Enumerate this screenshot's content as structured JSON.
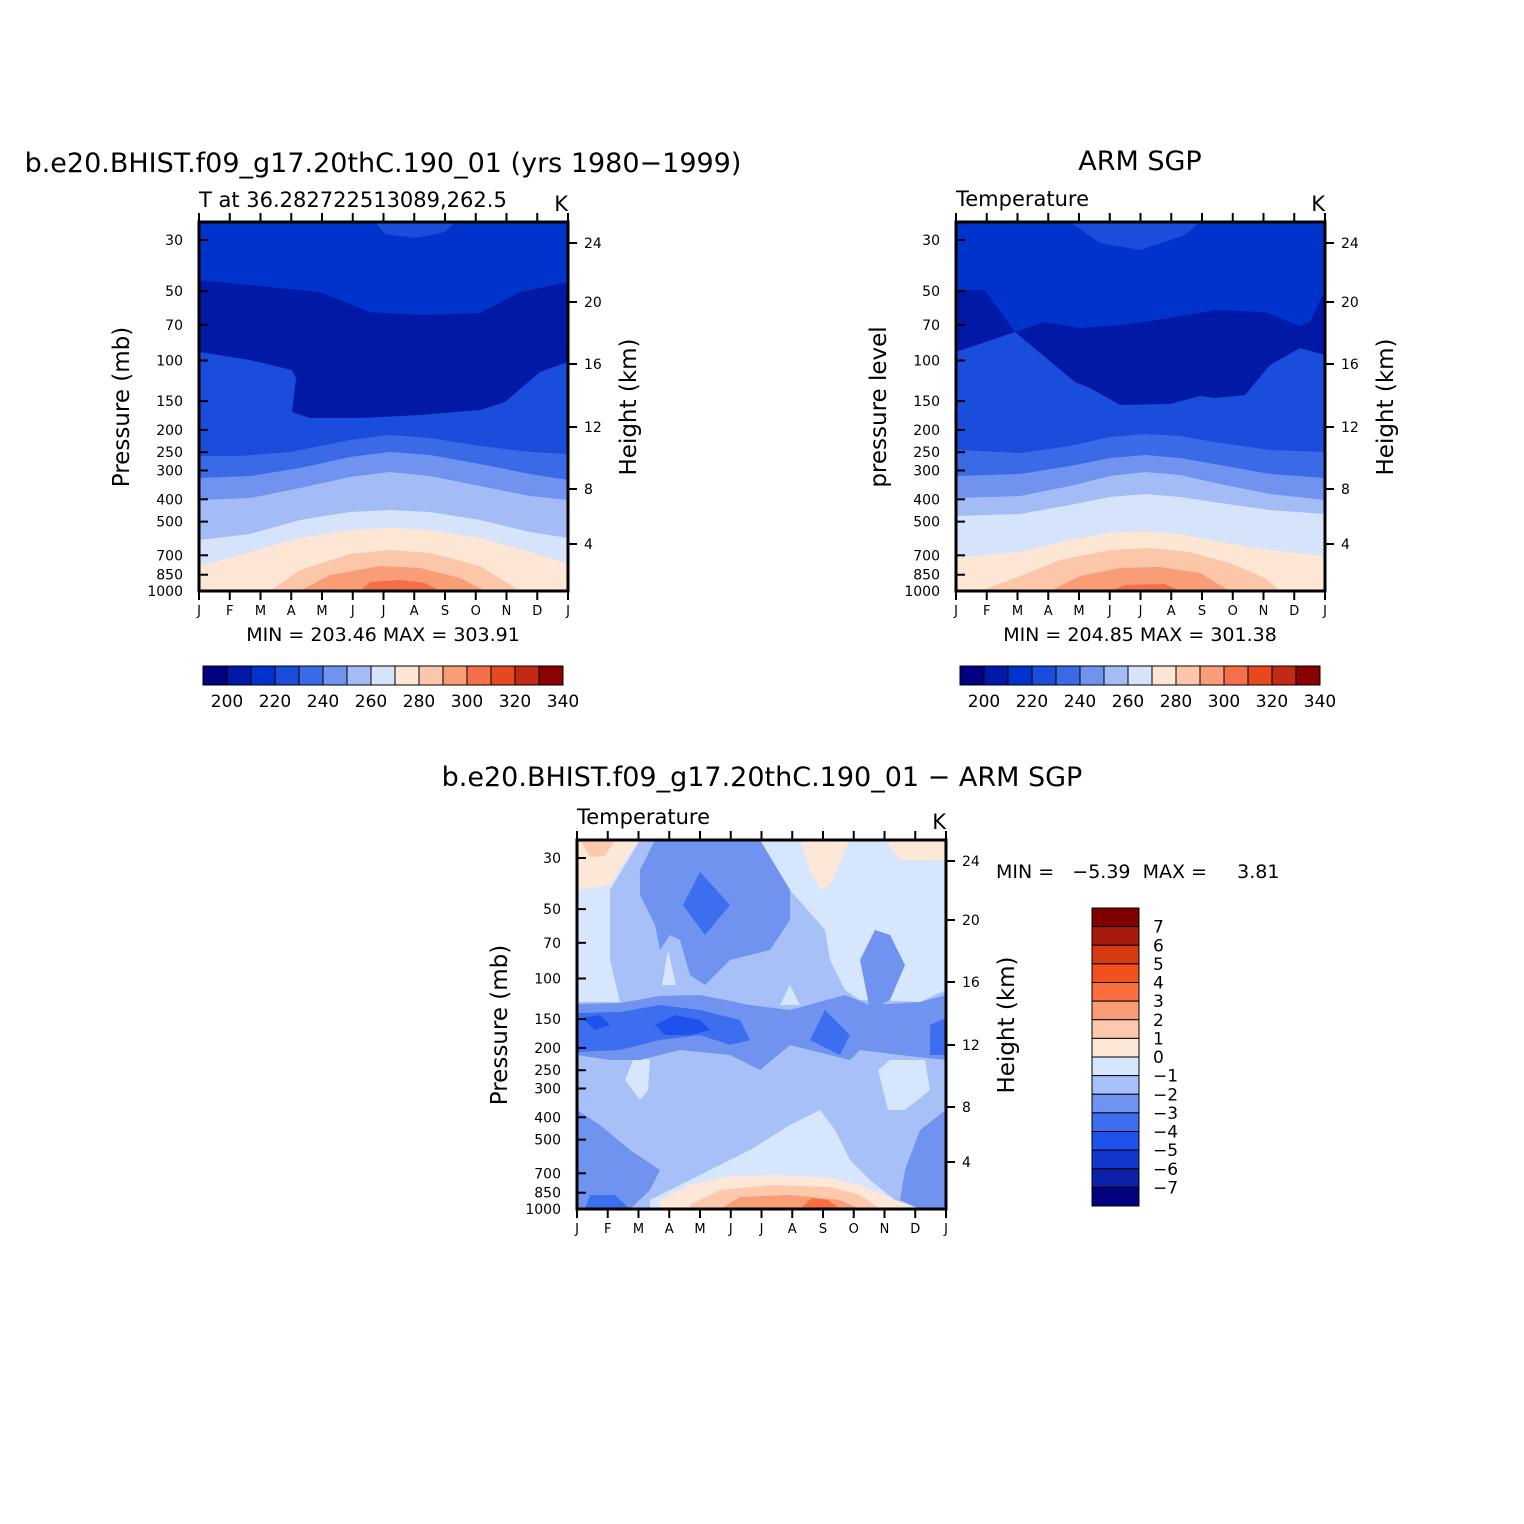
{
  "palette": {
    "model": [
      "#000080",
      "#0019a6",
      "#0033cc",
      "#1a4ddc",
      "#3a6ae6",
      "#6f93ef",
      "#a3bcf6",
      "#d6e4fb",
      "#fde6d4",
      "#fcc7a9",
      "#f99c78",
      "#f56f4b",
      "#e8481f",
      "#c12a14",
      "#8b0000"
    ],
    "diff": [
      "#000080",
      "#0b22a8",
      "#1237cc",
      "#1f52ec",
      "#3e6ef0",
      "#6f93ef",
      "#a7c0f7",
      "#d6e6fd",
      "#fde7d6",
      "#fdc8ac",
      "#f99d77",
      "#fa6d3f",
      "#f2501f",
      "#d63a11",
      "#a81a0e",
      "#7f0000"
    ]
  },
  "chart_data": [
    {
      "type": "heatmap",
      "panel": "model",
      "title": "b.e20.BHIST.f09_g17.20thC.190_01 (yrs 1980−1999)",
      "subtitle_left": "T at 36.282722513089,262.5",
      "subtitle_right": "K",
      "ylabel": "Pressure (mb)",
      "y2label": "Height (km)",
      "x_ticks": [
        "J",
        "F",
        "M",
        "A",
        "M",
        "J",
        "J",
        "A",
        "S",
        "O",
        "N",
        "D",
        "J"
      ],
      "y_ticks": [
        30,
        50,
        70,
        100,
        150,
        200,
        250,
        300,
        400,
        500,
        700,
        850,
        1000
      ],
      "y2_ticks": [
        24,
        20,
        16,
        12,
        8,
        4
      ],
      "stats": "MIN = 203.46 MAX = 303.91",
      "colorbar_labels": [
        "200",
        "220",
        "240",
        "260",
        "280",
        "300",
        "320",
        "340"
      ],
      "colorbar_bins": 15,
      "contour_bands": [
        {
          "level": 215,
          "y": [
            225,
            225,
            225,
            225,
            230,
            232,
            234,
            237,
            238,
            236,
            232,
            228,
            225
          ]
        },
        {
          "level": 210,
          "y": [
            105,
            105,
            100,
            100,
            105,
            110,
            112,
            110,
            110,
            105,
            95,
            90,
            105
          ]
        },
        {
          "level": 220,
          "y": [
            30,
            30,
            30,
            30,
            40,
            50,
            55,
            55,
            55,
            50,
            30,
            30,
            30
          ]
        },
        {
          "level": 225,
          "y": [
            255,
            255,
            255,
            253,
            248,
            243,
            241,
            242,
            244,
            248,
            252,
            255,
            255
          ]
        },
        {
          "level": 235,
          "y": [
            300,
            300,
            298,
            292,
            280,
            265,
            260,
            262,
            270,
            285,
            298,
            300,
            300
          ]
        },
        {
          "level": 245,
          "y": [
            400,
            400,
            395,
            380,
            360,
            340,
            330,
            335,
            355,
            380,
            400,
            400,
            400
          ]
        },
        {
          "level": 255,
          "y": [
            500,
            500,
            490,
            470,
            440,
            415,
            405,
            410,
            440,
            475,
            500,
            500,
            500
          ]
        },
        {
          "level": 265,
          "y": [
            640,
            640,
            620,
            580,
            540,
            510,
            500,
            505,
            540,
            590,
            640,
            640,
            640
          ]
        },
        {
          "level": 275,
          "y": [
            800,
            800,
            780,
            730,
            680,
            640,
            630,
            640,
            680,
            740,
            800,
            800,
            800
          ]
        },
        {
          "level": 285,
          "y": [
            1000,
            1000,
            1000,
            930,
            870,
            830,
            820,
            830,
            870,
            940,
            1000,
            1000,
            1000
          ]
        },
        {
          "level": 295,
          "y": [
            1000,
            1000,
            1000,
            1000,
            970,
            940,
            930,
            945,
            985,
            1000,
            1000,
            1000,
            1000
          ]
        },
        {
          "level": 300,
          "y": [
            1000,
            1000,
            1000,
            1000,
            1000,
            990,
            980,
            985,
            1000,
            1000,
            1000,
            1000,
            1000
          ]
        }
      ]
    },
    {
      "type": "heatmap",
      "panel": "obs",
      "title": "ARM SGP",
      "subtitle_left": "Temperature",
      "subtitle_right": "K",
      "ylabel": "pressure level",
      "y2label": "Height (km)",
      "x_ticks": [
        "J",
        "F",
        "M",
        "A",
        "M",
        "J",
        "J",
        "A",
        "S",
        "O",
        "N",
        "D",
        "J"
      ],
      "y_ticks": [
        30,
        50,
        70,
        100,
        150,
        200,
        250,
        300,
        400,
        500,
        700,
        850,
        1000
      ],
      "y2_ticks": [
        24,
        20,
        16,
        12,
        8,
        4
      ],
      "stats": "MIN = 204.85 MAX = 301.38",
      "colorbar_labels": [
        "200",
        "220",
        "240",
        "260",
        "280",
        "300",
        "320",
        "340"
      ],
      "colorbar_bins": 15
    },
    {
      "type": "heatmap",
      "panel": "difference",
      "title": "b.e20.BHIST.f09_g17.20thC.190_01 − ARM SGP",
      "subtitle_left": "Temperature",
      "subtitle_right": "K",
      "ylabel": "Pressure (mb)",
      "y2label": "Height (km)",
      "x_ticks": [
        "J",
        "F",
        "M",
        "A",
        "M",
        "J",
        "J",
        "A",
        "S",
        "O",
        "N",
        "D",
        "J"
      ],
      "y_ticks": [
        30,
        50,
        70,
        100,
        150,
        200,
        250,
        300,
        400,
        500,
        700,
        850,
        1000
      ],
      "y2_ticks": [
        24,
        20,
        16,
        12,
        8,
        4
      ],
      "stats": "MIN =   −5.39  MAX =     3.81",
      "colorbar_labels": [
        "7",
        "6",
        "5",
        "4",
        "3",
        "2",
        "1",
        "0",
        "−1",
        "−2",
        "−3",
        "−4",
        "−5",
        "−6",
        "−7"
      ],
      "colorbar_bins": 16
    }
  ]
}
